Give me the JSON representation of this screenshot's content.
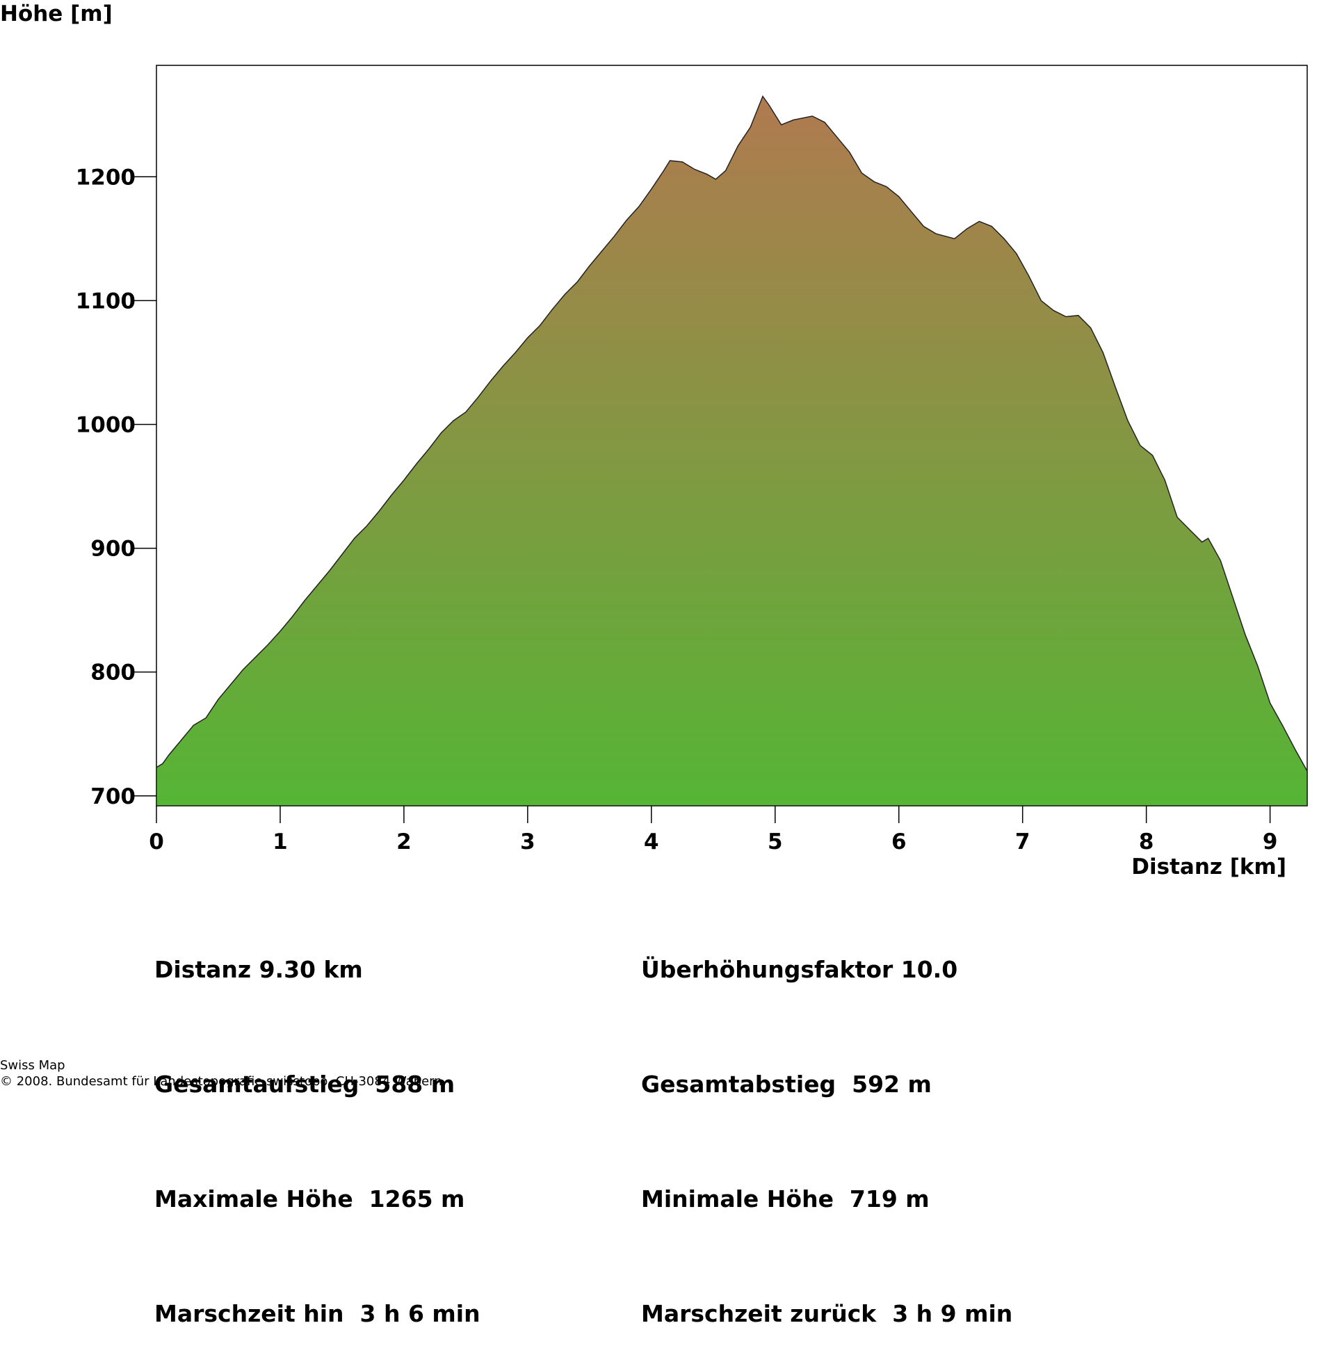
{
  "chart_data": {
    "type": "area",
    "ylabel": "Höhe [m]",
    "xlabel": "Distanz [km]",
    "xlim": [
      0,
      9.3
    ],
    "ylim": [
      692,
      1290
    ],
    "x_ticks": [
      0,
      1,
      2,
      3,
      4,
      5,
      6,
      7,
      8,
      9
    ],
    "y_ticks": [
      700,
      800,
      900,
      1000,
      1100,
      1200
    ],
    "fill_colors": {
      "top": "#b07a4f",
      "bottom": "#55b535"
    },
    "series": [
      {
        "name": "Höhenprofil",
        "points": [
          [
            0,
            723
          ],
          [
            0.05,
            726
          ],
          [
            0.1,
            733
          ],
          [
            0.2,
            745
          ],
          [
            0.3,
            757
          ],
          [
            0.4,
            763
          ],
          [
            0.5,
            778
          ],
          [
            0.6,
            790
          ],
          [
            0.7,
            802
          ],
          [
            0.8,
            812
          ],
          [
            0.9,
            822
          ],
          [
            1.0,
            833
          ],
          [
            1.1,
            845
          ],
          [
            1.2,
            858
          ],
          [
            1.3,
            870
          ],
          [
            1.4,
            882
          ],
          [
            1.5,
            895
          ],
          [
            1.6,
            908
          ],
          [
            1.7,
            918
          ],
          [
            1.8,
            930
          ],
          [
            1.9,
            943
          ],
          [
            2.0,
            955
          ],
          [
            2.1,
            968
          ],
          [
            2.2,
            980
          ],
          [
            2.3,
            993
          ],
          [
            2.4,
            1003
          ],
          [
            2.5,
            1010
          ],
          [
            2.6,
            1022
          ],
          [
            2.7,
            1035
          ],
          [
            2.8,
            1047
          ],
          [
            2.9,
            1058
          ],
          [
            3.0,
            1070
          ],
          [
            3.1,
            1080
          ],
          [
            3.2,
            1093
          ],
          [
            3.3,
            1105
          ],
          [
            3.4,
            1115
          ],
          [
            3.5,
            1128
          ],
          [
            3.6,
            1140
          ],
          [
            3.7,
            1152
          ],
          [
            3.8,
            1165
          ],
          [
            3.9,
            1176
          ],
          [
            4.0,
            1190
          ],
          [
            4.1,
            1205
          ],
          [
            4.15,
            1213
          ],
          [
            4.25,
            1212
          ],
          [
            4.35,
            1206
          ],
          [
            4.45,
            1202
          ],
          [
            4.52,
            1198
          ],
          [
            4.6,
            1205
          ],
          [
            4.7,
            1225
          ],
          [
            4.8,
            1240
          ],
          [
            4.9,
            1265
          ],
          [
            4.95,
            1258
          ],
          [
            5.05,
            1242
          ],
          [
            5.15,
            1246
          ],
          [
            5.3,
            1249
          ],
          [
            5.4,
            1244
          ],
          [
            5.5,
            1232
          ],
          [
            5.6,
            1220
          ],
          [
            5.7,
            1203
          ],
          [
            5.8,
            1196
          ],
          [
            5.9,
            1192
          ],
          [
            6.0,
            1184
          ],
          [
            6.1,
            1172
          ],
          [
            6.2,
            1160
          ],
          [
            6.3,
            1154
          ],
          [
            6.45,
            1150
          ],
          [
            6.55,
            1158
          ],
          [
            6.65,
            1164
          ],
          [
            6.75,
            1160
          ],
          [
            6.85,
            1150
          ],
          [
            6.95,
            1138
          ],
          [
            7.05,
            1120
          ],
          [
            7.15,
            1100
          ],
          [
            7.25,
            1092
          ],
          [
            7.35,
            1087
          ],
          [
            7.45,
            1088
          ],
          [
            7.55,
            1078
          ],
          [
            7.65,
            1058
          ],
          [
            7.75,
            1030
          ],
          [
            7.85,
            1003
          ],
          [
            7.95,
            983
          ],
          [
            8.05,
            975
          ],
          [
            8.15,
            955
          ],
          [
            8.25,
            925
          ],
          [
            8.35,
            915
          ],
          [
            8.45,
            905
          ],
          [
            8.5,
            908
          ],
          [
            8.6,
            890
          ],
          [
            8.7,
            860
          ],
          [
            8.8,
            830
          ],
          [
            8.9,
            805
          ],
          [
            9.0,
            775
          ],
          [
            9.1,
            757
          ],
          [
            9.2,
            738
          ],
          [
            9.3,
            720
          ]
        ]
      }
    ]
  },
  "stats": {
    "left": [
      "Distanz 9.30 km",
      "Gesamtaufstieg  588 m",
      "Maximale Höhe  1265 m",
      "Marschzeit hin  3 h 6 min"
    ],
    "right": [
      "Überhöhungsfaktor 10.0",
      "Gesamtabstieg  592 m",
      "Minimale Höhe  719 m",
      "Marschzeit zurück  3 h 9 min"
    ]
  },
  "credit": {
    "line1": "Swiss Map",
    "line2": "© 2008. Bundesamt für Landestopografie swisstopo, CH-3084 Wabern"
  }
}
